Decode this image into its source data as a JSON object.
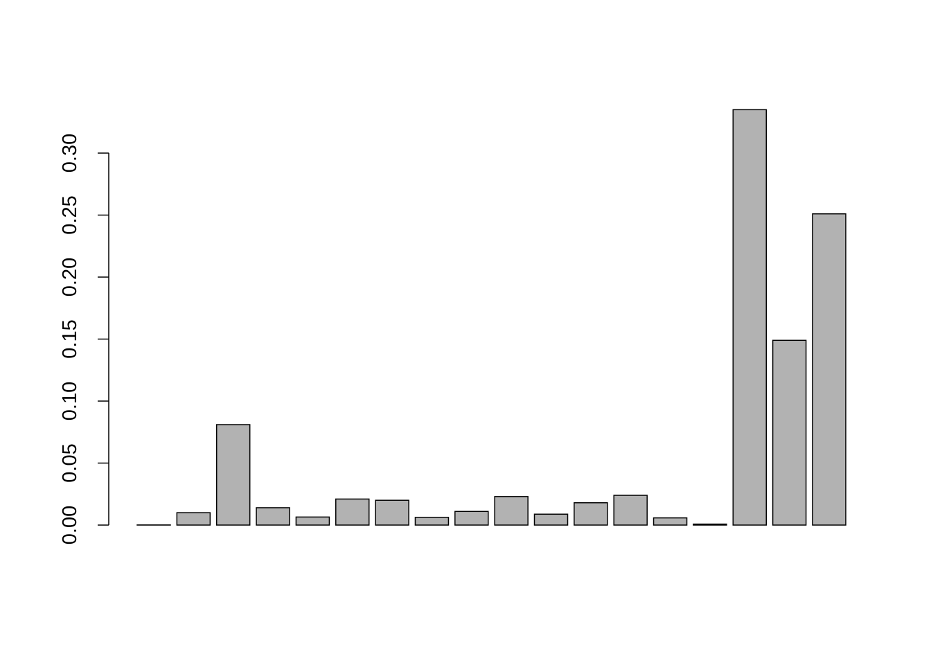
{
  "chart_data": {
    "type": "bar",
    "title": "",
    "xlabel": "",
    "ylabel": "",
    "ylim": [
      0,
      0.33
    ],
    "y_ticks": [
      0.0,
      0.05,
      0.1,
      0.15,
      0.2,
      0.25,
      0.3
    ],
    "y_tick_labels": [
      "0.00",
      "0.05",
      "0.10",
      "0.15",
      "0.20",
      "0.25",
      "0.30"
    ],
    "values": [
      0.0001,
      0.01,
      0.081,
      0.014,
      0.0065,
      0.021,
      0.02,
      0.0062,
      0.011,
      0.023,
      0.0088,
      0.018,
      0.024,
      0.0058,
      0.0008,
      0.335,
      0.149,
      0.251
    ],
    "grid": false,
    "legend": "none",
    "colors": {
      "bar_fill": "#b2b2b2",
      "bar_stroke": "#000000",
      "background": "#ffffff"
    }
  }
}
